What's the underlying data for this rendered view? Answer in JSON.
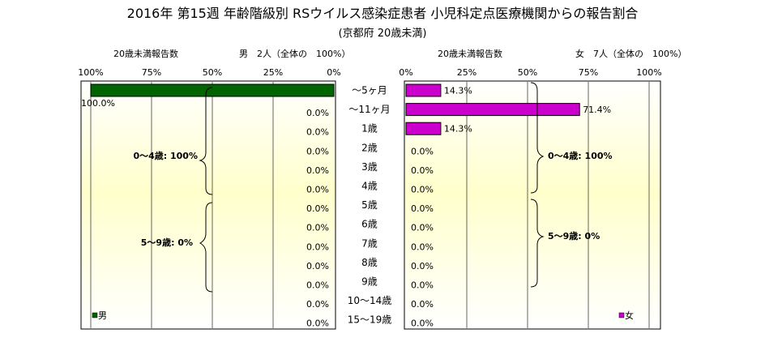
{
  "title": "2016年 第15週 年齢階級別 RSウイルス感染症患者 小児科定点医療機関からの報告割合",
  "subtitle": "(京都府 20歳未満)",
  "chart_data": {
    "type": "bar",
    "categories": [
      "～5ヶ月",
      "～11ヶ月",
      "1歳",
      "2歳",
      "3歳",
      "4歳",
      "5歳",
      "6歳",
      "7歳",
      "8歳",
      "9歳",
      "10～14歳",
      "15～19歳"
    ],
    "male": {
      "header_left": "20歳未満報告数",
      "header_right": "男　2人（全体の　100%）",
      "legend": "男",
      "color": "#006400",
      "ticks": [
        "100%",
        "75%",
        "50%",
        "25%",
        "0%"
      ],
      "values": [
        100.0,
        0.0,
        0.0,
        0.0,
        0.0,
        0.0,
        0.0,
        0.0,
        0.0,
        0.0,
        0.0,
        0.0,
        0.0
      ],
      "labels": [
        "100.0%",
        "0.0%",
        "0.0%",
        "0.0%",
        "0.0%",
        "0.0%",
        "0.0%",
        "0.0%",
        "0.0%",
        "0.0%",
        "0.0%",
        "0.0%",
        "0.0%"
      ],
      "group_0_4": "0～4歳: 100%",
      "group_5_9": "5～9歳: 0%"
    },
    "female": {
      "header_left": "20歳未満報告数",
      "header_right": "女　7人（全体の　100%）",
      "legend": "女",
      "color": "#cc00cc",
      "ticks": [
        "0%",
        "25%",
        "50%",
        "75%",
        "100%"
      ],
      "values": [
        14.3,
        71.4,
        14.3,
        0.0,
        0.0,
        0.0,
        0.0,
        0.0,
        0.0,
        0.0,
        0.0,
        0.0,
        0.0
      ],
      "labels": [
        "14.3%",
        "71.4%",
        "14.3%",
        "0.0%",
        "0.0%",
        "0.0%",
        "0.0%",
        "0.0%",
        "0.0%",
        "0.0%",
        "0.0%",
        "0.0%",
        "0.0%"
      ],
      "group_0_4": "0～4歳: 100%",
      "group_5_9": "5～9歳: 0%"
    },
    "xlim": [
      0,
      100
    ],
    "grid": true
  }
}
